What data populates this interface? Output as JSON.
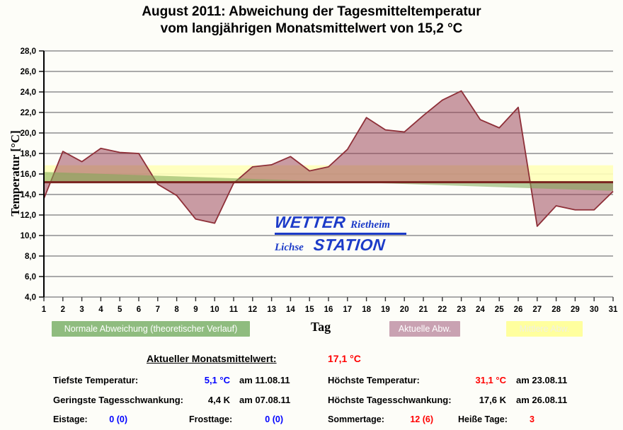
{
  "title": {
    "line1": "August 2011: Abweichung der Tagesmitteltemperatur",
    "line2": "vom langjährigen Monatsmittelwert von 15,2 °C"
  },
  "chart_data": {
    "type": "area",
    "title": "August 2011: Abweichung der Tagesmitteltemperatur vom langjährigen Monatsmittelwert von 15,2 °C",
    "xlabel": "Tag",
    "ylabel": "Temperatur [°C]",
    "ylim": [
      4.0,
      28.0
    ],
    "ytick_step": 2.0,
    "grid": true,
    "x": [
      1,
      2,
      3,
      4,
      5,
      6,
      7,
      8,
      9,
      10,
      11,
      12,
      13,
      14,
      15,
      16,
      17,
      18,
      19,
      20,
      21,
      22,
      23,
      24,
      25,
      26,
      27,
      28,
      29,
      30,
      31
    ],
    "series": [
      {
        "name": "Aktuelle Abw.",
        "values": [
          13.6,
          18.2,
          17.2,
          18.5,
          18.1,
          18.0,
          15.0,
          13.9,
          11.6,
          11.2,
          15.1,
          16.7,
          16.9,
          17.7,
          16.3,
          16.7,
          18.4,
          21.5,
          20.3,
          20.1,
          21.7,
          23.2,
          24.1,
          21.3,
          20.5,
          22.5,
          10.9,
          12.9,
          12.5,
          12.5,
          14.3
        ],
        "fill": "rgba(150,58,78,0.5)",
        "stroke": "#8e2f38"
      }
    ],
    "baseline": {
      "value": 15.2,
      "color": "#7a2420"
    },
    "bands": {
      "mittlere_abw": {
        "name": "Mittlere Abw.",
        "from": 15.2,
        "to": 16.85,
        "fill": "rgba(255,255,185,0.9)"
      },
      "normale_abweichung": {
        "name": "Normale Abweichung (theoretischer Verlauf)",
        "start_value": 16.2,
        "end_value": 14.35,
        "relative_to_baseline": true,
        "fill": "rgba(125,170,85,0.55)"
      }
    },
    "colors": {
      "grid": "#8f8f8f",
      "axis": "#000000",
      "tick_label": "#000000"
    }
  },
  "legend": [
    {
      "label": "Normale Abweichung (theoretischer Verlauf)",
      "style": "background:#8fbc7f;color:#ffffff"
    },
    {
      "label": "Aktuelle Abw.",
      "style": "background:#c9a2b2;color:#ffffff"
    },
    {
      "label": "Mittlere Abw.",
      "style": "background:#ffff9e;color:#f0f0e0"
    }
  ],
  "watermark": {
    "line1_big": "WETTER",
    "line1_small": "Rietheim",
    "line2_small": "Lichse",
    "line2_big": "STATION",
    "color": "#1c3bc8"
  },
  "stats": {
    "monthly_mean": {
      "label": "Aktueller Monatsmittelwert:",
      "value": "17,1 °C",
      "value_style": "color:#ff0000"
    },
    "rows": [
      {
        "label": "Tiefste Temperatur:",
        "value": "5,1 °C",
        "value_style": "color:#0000ff",
        "date": "am 11.08.11"
      },
      {
        "label": "Höchste Temperatur:",
        "value": "31,1 °C",
        "value_style": "color:#ff0000",
        "date": "am 23.08.11"
      },
      {
        "label": "Geringste Tagesschwankung:",
        "value": "4,4 K",
        "value_style": "color:#000000",
        "date": "am 07.08.11"
      },
      {
        "label": "Höchste Tagesschwankung:",
        "value": "17,6 K",
        "value_style": "color:#000000",
        "date": "am 26.08.11"
      },
      {
        "label": "Eistage:",
        "value": "0 (0)",
        "value_style": "color:#0000ff"
      },
      {
        "label": "Frosttage:",
        "value": "0 (0)",
        "value_style": "color:#0000ff"
      },
      {
        "label": "Sommertage:",
        "value": "12 (6)",
        "value_style": "color:#ff0000"
      },
      {
        "label": "Heiße Tage:",
        "value": "3",
        "value_style": "color:#ff0000"
      }
    ]
  }
}
